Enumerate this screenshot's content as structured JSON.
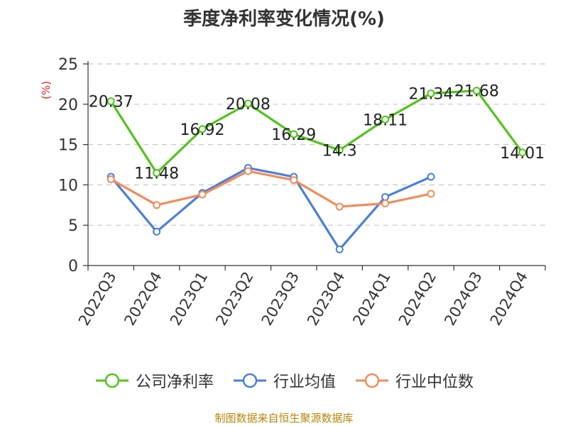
{
  "title": "季度净利率变化情况(%)",
  "source": "制图数据来自恒生聚源数据库",
  "chart_data": {
    "type": "line",
    "title": "季度净利率变化情况(%)",
    "ylabel": "(%)",
    "ylim": [
      0,
      25
    ],
    "yticks": [
      0,
      5,
      10,
      15,
      20,
      25
    ],
    "grid": true,
    "legend_position": "bottom",
    "categories": [
      "2022Q3",
      "2022Q4",
      "2023Q1",
      "2023Q2",
      "2023Q3",
      "2023Q4",
      "2024Q1",
      "2024Q2",
      "2024Q3",
      "2024Q4"
    ],
    "series": [
      {
        "name": "公司净利率",
        "color": "#52c41a",
        "show_labels": true,
        "values": [
          20.37,
          11.48,
          16.92,
          20.08,
          16.29,
          14.3,
          18.11,
          21.34,
          21.68,
          14.01
        ]
      },
      {
        "name": "行业均值",
        "color": "#4a7fdc",
        "show_labels": false,
        "values": [
          11.0,
          4.2,
          9.0,
          12.1,
          11.0,
          2.0,
          8.5,
          11.0,
          null,
          null
        ]
      },
      {
        "name": "行业中位数",
        "color": "#f28c5a",
        "show_labels": false,
        "values": [
          10.7,
          7.5,
          8.8,
          11.7,
          10.6,
          7.3,
          7.7,
          8.9,
          null,
          null
        ]
      }
    ]
  }
}
